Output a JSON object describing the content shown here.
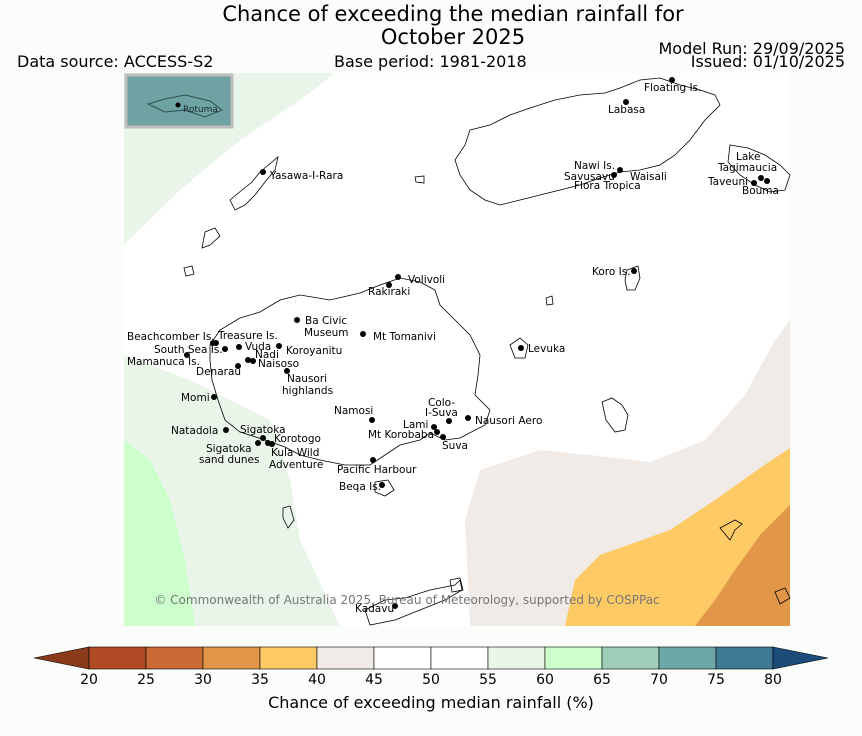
{
  "header": {
    "title_line1": "Chance of exceeding the median rainfall for",
    "title_line2": "October 2025",
    "data_source": "Data source: ACCESS-S2",
    "base_period": "Base period: 1981-2018",
    "model_run": "Model Run: 29/09/2025",
    "issued": "Issued: 01/10/2025"
  },
  "inset": {
    "label": "Rotuma"
  },
  "copyright": "© Commonwealth of Australia 2025, Bureau of Meteorology, supported by COSPPac",
  "places": [
    {
      "name": "Floating Is."
    },
    {
      "name": "Labasa"
    },
    {
      "name": "Yasawa-I-Rara"
    },
    {
      "name": "Nawi Is."
    },
    {
      "name": "Savusavu"
    },
    {
      "name": "Waisali"
    },
    {
      "name": "Flora Tropica"
    },
    {
      "name": "Lake"
    },
    {
      "name": "Tagimaucia"
    },
    {
      "name": "Taveuni"
    },
    {
      "name": "Bouma"
    },
    {
      "name": "Koro Is."
    },
    {
      "name": "Volivoli"
    },
    {
      "name": "Rakiraki"
    },
    {
      "name": "Ba Civic"
    },
    {
      "name": "Museum"
    },
    {
      "name": "Mt Tomanivi"
    },
    {
      "name": "Beachcomber Is."
    },
    {
      "name": "Treasure Is."
    },
    {
      "name": "South Sea Is."
    },
    {
      "name": "Vuda"
    },
    {
      "name": "Mamanuca Is."
    },
    {
      "name": "Nadi"
    },
    {
      "name": "Koroyanitu"
    },
    {
      "name": "Denarau"
    },
    {
      "name": "Naisoso"
    },
    {
      "name": "Levuka"
    },
    {
      "name": "Nausori"
    },
    {
      "name": "highlands"
    },
    {
      "name": "Momi"
    },
    {
      "name": "Colo-"
    },
    {
      "name": "I-Suva"
    },
    {
      "name": "Namosi"
    },
    {
      "name": "Nausori Aero"
    },
    {
      "name": "Lami"
    },
    {
      "name": "Mt Korobaba"
    },
    {
      "name": "Natadola"
    },
    {
      "name": "Sigatoka"
    },
    {
      "name": "Korotogo"
    },
    {
      "name": "Suva"
    },
    {
      "name": "Sigatoka"
    },
    {
      "name": "sand dunes"
    },
    {
      "name": "Kula Wild"
    },
    {
      "name": "Adventure"
    },
    {
      "name": "Pacific Harbour"
    },
    {
      "name": "Beqa Is."
    },
    {
      "name": "Kadavu"
    }
  ],
  "colorbar": {
    "label": "Chance of exceeding median rainfall (%)",
    "ticks": [
      "20",
      "25",
      "30",
      "35",
      "40",
      "45",
      "50",
      "55",
      "60",
      "65",
      "70",
      "75",
      "80"
    ],
    "colors": [
      "#8b3a19",
      "#b04a24",
      "#cc6a35",
      "#e29748",
      "#fdca66",
      "#f0ebe6",
      "#ffffff",
      "#ffffff",
      "#eaf5ea",
      "#ccffcc",
      "#9fceb8",
      "#6da7a7",
      "#3f7a95",
      "#1d4b7a"
    ]
  }
}
